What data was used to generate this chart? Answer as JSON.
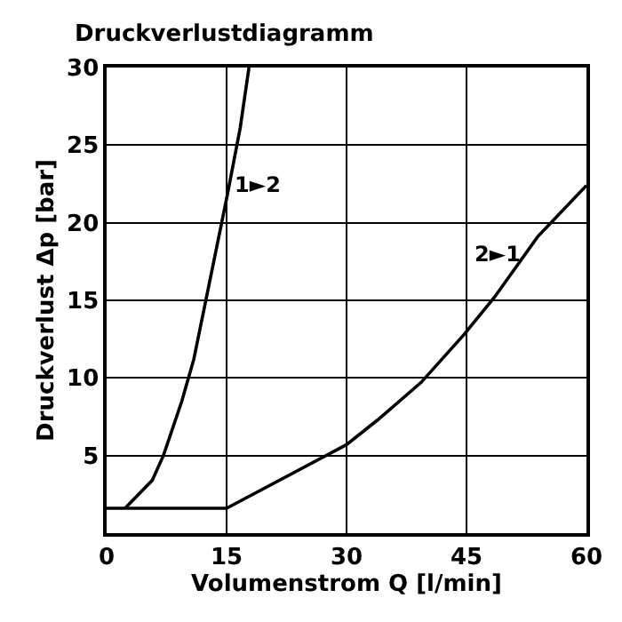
{
  "chart_data": {
    "type": "line",
    "title": "Druckverlustdiagramm",
    "xlabel": "Volumenstrom Q [l/min]",
    "ylabel": "Druckverlust Δp [bar]",
    "series": [
      {
        "name": "1►2",
        "color": "#000000",
        "x": [
          2.3,
          5.7,
          7.1,
          9.4,
          10.9,
          12.8,
          15.1,
          16.7,
          17.8
        ],
        "values": [
          1.6,
          3.4,
          5,
          8.5,
          11.2,
          16,
          21.8,
          26.1,
          30
        ]
      },
      {
        "name": "2►1",
        "color": "#000000",
        "x": [
          0,
          15,
          30,
          33.9,
          39.3,
          44.7,
          48.5,
          53.9,
          60
        ],
        "values": [
          1.6,
          1.6,
          5.7,
          7.3,
          9.7,
          12.8,
          15.2,
          19.1,
          22.4
        ]
      }
    ],
    "xlim": [
      0,
      60
    ],
    "xticks": [
      0,
      15,
      30,
      45,
      60
    ],
    "ylim": [
      0,
      30
    ],
    "yticks": [
      5,
      10,
      15,
      20,
      25,
      30
    ],
    "grid": true,
    "marker": "none",
    "line_style": "solid"
  }
}
